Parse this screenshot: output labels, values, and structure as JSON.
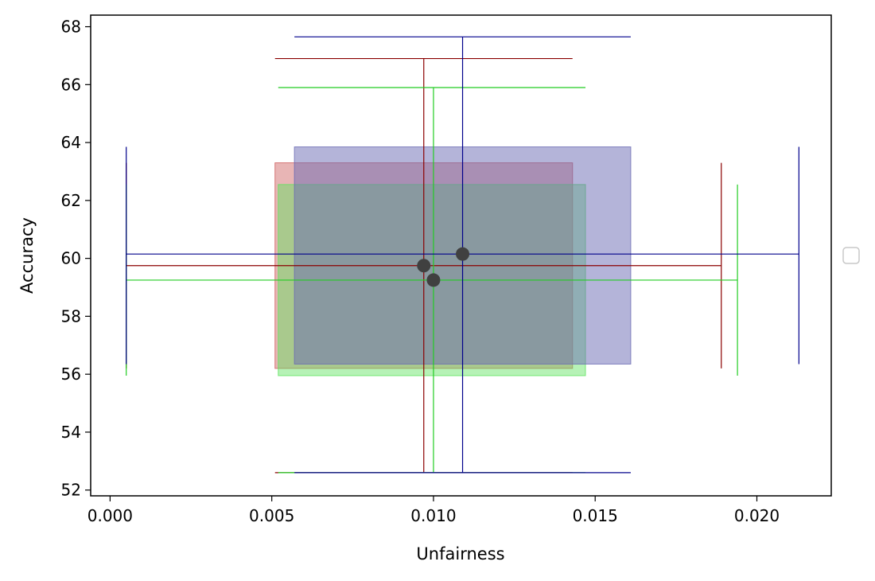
{
  "chart_data": {
    "type": "scatter",
    "title": "",
    "xlabel": "Unfairness",
    "ylabel": "Accuracy",
    "xlim": [
      -0.0006,
      0.0223
    ],
    "ylim": [
      51.8,
      68.4
    ],
    "x_ticks": [
      0.0,
      0.005,
      0.01,
      0.015,
      0.02
    ],
    "x_tick_labels": [
      "0.000",
      "0.005",
      "0.010",
      "0.015",
      "0.020"
    ],
    "y_ticks": [
      52,
      54,
      56,
      58,
      60,
      62,
      64,
      66,
      68
    ],
    "y_tick_labels": [
      "52",
      "54",
      "56",
      "58",
      "60",
      "62",
      "64",
      "66",
      "68"
    ],
    "grid": false,
    "legend": {
      "placement": "outside-right",
      "entries": []
    },
    "point_color": "#404040",
    "series": [
      {
        "color": "#8b0000",
        "x": 0.0097,
        "y": 59.75,
        "x_whisker": [
          0.0005,
          0.0189
        ],
        "y_whisker": [
          52.6,
          66.9
        ],
        "x_iqr": [
          0.0051,
          0.0143
        ],
        "y_iqr": [
          56.2,
          63.3
        ],
        "box_fill": "#cd5c5c",
        "box_opacity": 0.45
      },
      {
        "color": "#22cc22",
        "x": 0.01,
        "y": 59.25,
        "x_whisker": [
          0.0005,
          0.0194
        ],
        "y_whisker": [
          52.6,
          65.9
        ],
        "x_iqr": [
          0.0052,
          0.0147
        ],
        "y_iqr": [
          55.95,
          62.55
        ],
        "box_fill": "#5ee35e",
        "box_opacity": 0.45
      },
      {
        "color": "#00008b",
        "x": 0.0109,
        "y": 60.15,
        "x_whisker": [
          0.0005,
          0.0213
        ],
        "y_whisker": [
          52.6,
          67.65
        ],
        "x_iqr": [
          0.0057,
          0.0161
        ],
        "y_iqr": [
          56.35,
          63.85
        ],
        "box_fill": "#6a6ab4",
        "box_opacity": 0.5
      }
    ]
  }
}
